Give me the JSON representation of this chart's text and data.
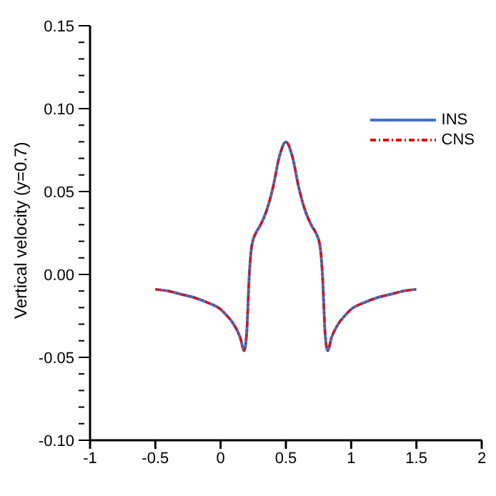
{
  "chart_data": {
    "type": "line",
    "ylabel": "Vertical velocity (y=0.7)",
    "x": [
      -0.5,
      -0.4,
      -0.3,
      -0.2,
      -0.1,
      0,
      0.05,
      0.1,
      0.15,
      0.18,
      0.2,
      0.22,
      0.24,
      0.27,
      0.3,
      0.35,
      0.4,
      0.45,
      0.5,
      0.55,
      0.6,
      0.65,
      0.7,
      0.73,
      0.76,
      0.78,
      0.8,
      0.82,
      0.85,
      0.9,
      0.95,
      1,
      1.1,
      1.2,
      1.3,
      1.4,
      1.5
    ],
    "series": [
      {
        "name": "INS",
        "color": "#4472c4",
        "line_style": "solid",
        "values": [
          -0.009,
          -0.01,
          -0.012,
          -0.014,
          -0.017,
          -0.021,
          -0.025,
          -0.03,
          -0.038,
          -0.046,
          -0.035,
          0.0,
          0.018,
          0.025,
          0.029,
          0.038,
          0.052,
          0.071,
          0.08,
          0.071,
          0.052,
          0.038,
          0.029,
          0.025,
          0.018,
          0.0,
          -0.035,
          -0.046,
          -0.038,
          -0.03,
          -0.025,
          -0.021,
          -0.017,
          -0.014,
          -0.012,
          -0.01,
          -0.009
        ]
      },
      {
        "name": "CNS",
        "color": "#e01010",
        "line_style": "dashdot",
        "values": [
          -0.009,
          -0.01,
          -0.012,
          -0.014,
          -0.017,
          -0.021,
          -0.025,
          -0.03,
          -0.038,
          -0.046,
          -0.035,
          0.0,
          0.018,
          0.025,
          0.029,
          0.038,
          0.052,
          0.071,
          0.08,
          0.071,
          0.052,
          0.038,
          0.029,
          0.025,
          0.018,
          0.0,
          -0.035,
          -0.046,
          -0.038,
          -0.03,
          -0.025,
          -0.021,
          -0.017,
          -0.014,
          -0.012,
          -0.01,
          -0.009
        ]
      }
    ],
    "xlim": [
      -1,
      2
    ],
    "xticks": [
      -1,
      -0.5,
      0,
      0.5,
      1,
      1.5,
      2
    ],
    "ylim": [
      -0.1,
      0.15
    ],
    "yticks": [
      {
        "value": -0.1,
        "label": "-0.10"
      },
      {
        "value": -0.09,
        "label": null
      },
      {
        "value": -0.08,
        "label": null
      },
      {
        "value": -0.07,
        "label": null
      },
      {
        "value": -0.06,
        "label": null
      },
      {
        "value": -0.05,
        "label": "-0.05"
      },
      {
        "value": -0.04,
        "label": null
      },
      {
        "value": -0.03,
        "label": null
      },
      {
        "value": -0.02,
        "label": null
      },
      {
        "value": -0.01,
        "label": null
      },
      {
        "value": 0,
        "label": "0.00"
      },
      {
        "value": 0.01,
        "label": null
      },
      {
        "value": 0.02,
        "label": null
      },
      {
        "value": 0.03,
        "label": null
      },
      {
        "value": 0.04,
        "label": null
      },
      {
        "value": 0.05,
        "label": "0.05"
      },
      {
        "value": 0.06,
        "label": null
      },
      {
        "value": 0.07,
        "label": null
      },
      {
        "value": 0.08,
        "label": null
      },
      {
        "value": 0.09,
        "label": null
      },
      {
        "value": 0.1,
        "label": "0.10"
      },
      {
        "value": 0.11,
        "label": null
      },
      {
        "value": 0.12,
        "label": null
      },
      {
        "value": 0.13,
        "label": null
      },
      {
        "value": 0.14,
        "label": null
      },
      {
        "value": 0.15,
        "label": "0.15"
      }
    ],
    "grid": false,
    "legend": "top right",
    "marker": "none"
  }
}
